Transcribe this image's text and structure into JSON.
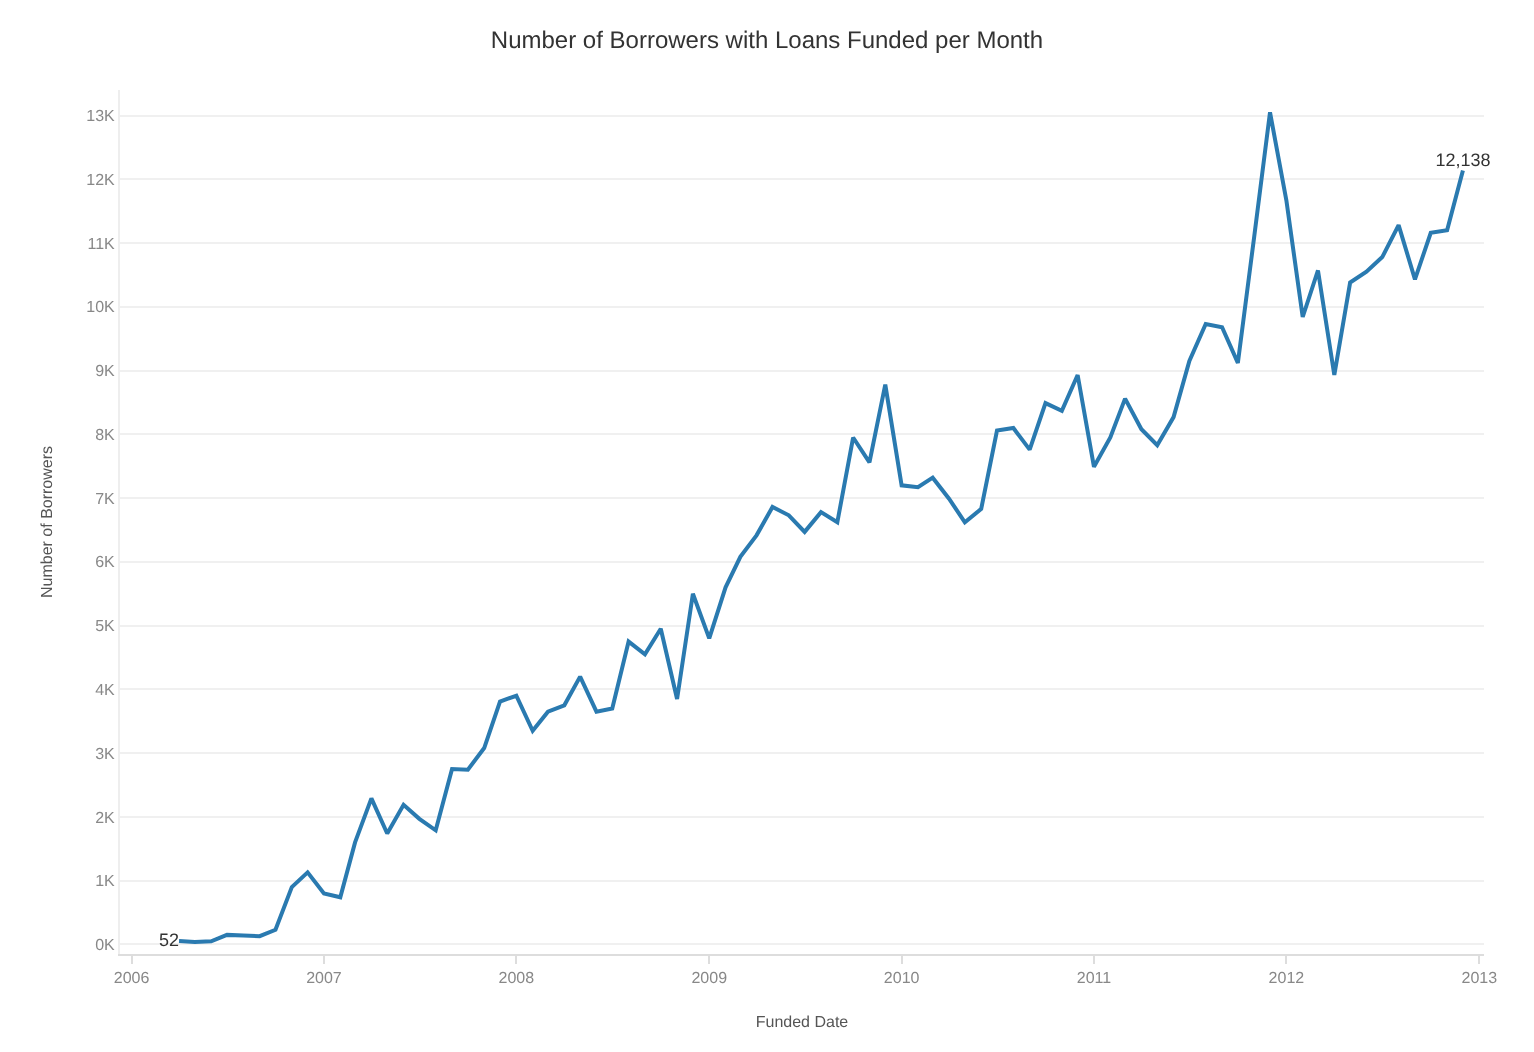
{
  "chart_data": {
    "type": "line",
    "title": "Number of Borrowers with Loans Funded per Month",
    "xlabel": "Funded Date",
    "ylabel": "Number of Borrowers",
    "x": [
      "2006-04",
      "2006-05",
      "2006-06",
      "2006-07",
      "2006-08",
      "2006-09",
      "2006-10",
      "2006-11",
      "2006-12",
      "2007-01",
      "2007-02",
      "2007-03",
      "2007-04",
      "2007-05",
      "2007-06",
      "2007-07",
      "2007-08",
      "2007-09",
      "2007-10",
      "2007-11",
      "2007-12",
      "2008-01",
      "2008-02",
      "2008-03",
      "2008-04",
      "2008-05",
      "2008-06",
      "2008-07",
      "2008-08",
      "2008-09",
      "2008-10",
      "2008-11",
      "2008-12",
      "2009-01",
      "2009-02",
      "2009-03",
      "2009-04",
      "2009-05",
      "2009-06",
      "2009-07",
      "2009-08",
      "2009-09",
      "2009-10",
      "2009-11",
      "2009-12",
      "2010-01",
      "2010-02",
      "2010-03",
      "2010-04",
      "2010-05",
      "2010-06",
      "2010-07",
      "2010-08",
      "2010-09",
      "2010-10",
      "2010-11",
      "2010-12",
      "2011-01",
      "2011-02",
      "2011-03",
      "2011-04",
      "2011-05",
      "2011-06",
      "2011-07",
      "2011-08",
      "2011-09",
      "2011-10",
      "2011-11",
      "2011-12",
      "2012-01",
      "2012-02",
      "2012-03",
      "2012-04",
      "2012-05",
      "2012-06",
      "2012-07",
      "2012-08",
      "2012-09",
      "2012-10",
      "2012-11",
      "2012-12"
    ],
    "series": [
      {
        "color": "#2a7ab0",
        "values": [
          52,
          40,
          50,
          150,
          140,
          130,
          230,
          900,
          1130,
          800,
          740,
          1600,
          2290,
          1740,
          2190,
          1970,
          1790,
          2750,
          2740,
          3080,
          3810,
          3900,
          3350,
          3650,
          3750,
          4200,
          3650,
          3700,
          4750,
          4550,
          4950,
          3850,
          5500,
          4800,
          5600,
          6080,
          6420,
          6860,
          6730,
          6470,
          6780,
          6620,
          7950,
          7560,
          8780,
          7200,
          7170,
          7320,
          6990,
          6620,
          6830,
          8060,
          8100,
          7760,
          8490,
          8370,
          8930,
          7490,
          7950,
          8560,
          8080,
          7830,
          8270,
          9150,
          9730,
          9680,
          9120,
          11100,
          13050,
          11670,
          9840,
          10570,
          8930,
          10380,
          10550,
          10780,
          11280,
          10430,
          11160,
          11200,
          12138
        ],
        "value_labels": [
          "52",
          null,
          null,
          null,
          null,
          null,
          null,
          null,
          null,
          null,
          null,
          null,
          null,
          null,
          null,
          null,
          null,
          null,
          null,
          null,
          null,
          null,
          null,
          null,
          null,
          null,
          null,
          null,
          null,
          null,
          null,
          null,
          null,
          null,
          null,
          null,
          null,
          null,
          null,
          null,
          null,
          null,
          null,
          null,
          null,
          null,
          null,
          null,
          null,
          null,
          null,
          null,
          null,
          null,
          null,
          null,
          null,
          null,
          null,
          null,
          null,
          null,
          null,
          null,
          null,
          null,
          null,
          null,
          null,
          null,
          null,
          null,
          null,
          null,
          null,
          null,
          null,
          null,
          null,
          null,
          "12,138"
        ]
      }
    ],
    "xlim": [
      "2005-12-10",
      "2013-01-10"
    ],
    "xticks": [
      "2006",
      "2007",
      "2008",
      "2009",
      "2010",
      "2011",
      "2012",
      "2013"
    ],
    "ylim": [
      -150,
      13400
    ],
    "yticks": [
      {
        "value": 0,
        "label": "0K"
      },
      {
        "value": 1000,
        "label": "1K"
      },
      {
        "value": 2000,
        "label": "2K"
      },
      {
        "value": 3000,
        "label": "3K"
      },
      {
        "value": 4000,
        "label": "4K"
      },
      {
        "value": 5000,
        "label": "5K"
      },
      {
        "value": 6000,
        "label": "6K"
      },
      {
        "value": 7000,
        "label": "7K"
      },
      {
        "value": 8000,
        "label": "8K"
      },
      {
        "value": 9000,
        "label": "9K"
      },
      {
        "value": 10000,
        "label": "10K"
      },
      {
        "value": 11000,
        "label": "11K"
      },
      {
        "value": 12000,
        "label": "12K"
      },
      {
        "value": 13000,
        "label": "13K"
      }
    ],
    "grid": "y",
    "marker": "none",
    "line_style": "solid"
  }
}
